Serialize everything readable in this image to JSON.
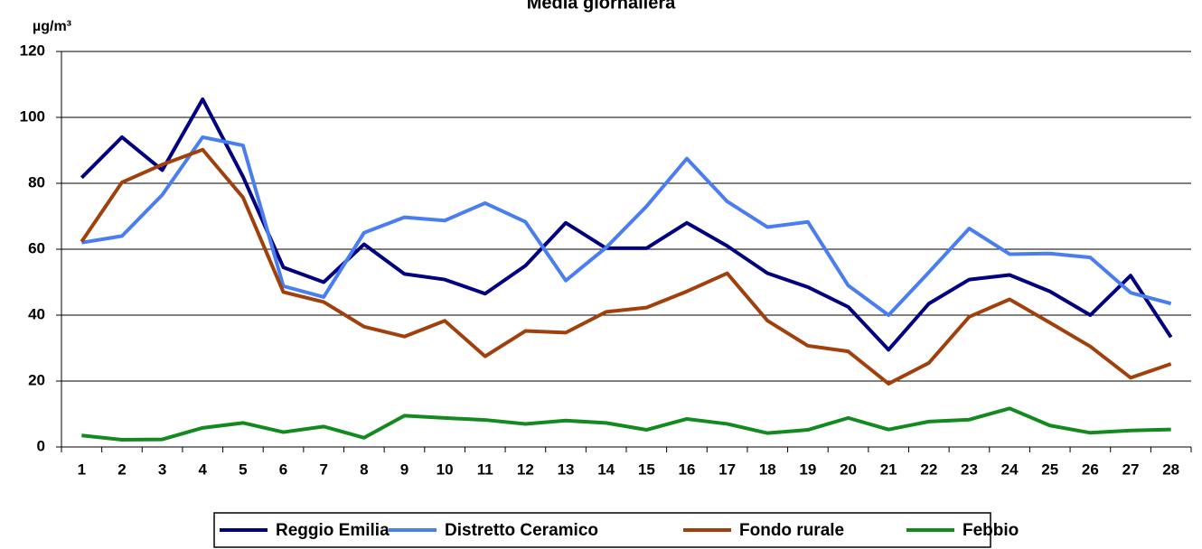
{
  "chart_data": {
    "type": "line",
    "title": "Media giornaliera",
    "y_label": "µg/m³",
    "categories": [
      "1",
      "2",
      "3",
      "4",
      "5",
      "6",
      "7",
      "8",
      "9",
      "10",
      "11",
      "12",
      "13",
      "14",
      "15",
      "16",
      "17",
      "18",
      "19",
      "20",
      "21",
      "22",
      "23",
      "24",
      "25",
      "26",
      "27",
      "28"
    ],
    "series": [
      {
        "name": "Reggio Emilia",
        "color": "#000080",
        "values": [
          81.7,
          94,
          84,
          105.5,
          82,
          54.5,
          50,
          61.5,
          52.5,
          50.8,
          46.5,
          55,
          68,
          60.3,
          60.3,
          68,
          61,
          52.7,
          48.5,
          42.5,
          29.5,
          43.5,
          50.8,
          52.2,
          47.2,
          40,
          52,
          33.3
        ]
      },
      {
        "name": "Distretto Ceramico",
        "color": "#4a7ef0",
        "values": [
          62,
          64,
          76.5,
          94,
          91.5,
          48.8,
          45.5,
          65,
          69.7,
          68.7,
          74,
          68.3,
          50.5,
          60.5,
          73,
          87.5,
          74.5,
          66.7,
          68.3,
          49,
          40,
          53,
          66.3,
          58.5,
          58.7,
          57.5,
          46.8,
          43.5
        ]
      },
      {
        "name": "Fondo rurale",
        "color": "#a0410d",
        "values": [
          62.3,
          80.3,
          85.7,
          90.2,
          75.7,
          47,
          44,
          36.5,
          33.5,
          38.3,
          27.5,
          35.2,
          34.7,
          41,
          42.3,
          47.2,
          52.7,
          38.3,
          30.7,
          29,
          19.2,
          25.5,
          39.5,
          44.8,
          37.7,
          30.5,
          21,
          25.2
        ]
      },
      {
        "name": "Febbio",
        "color": "#138a1f",
        "values": [
          3.5,
          2.2,
          2.3,
          5.8,
          7.3,
          4.5,
          6.2,
          2.8,
          9.5,
          8.8,
          8.2,
          7,
          8,
          7.3,
          5.2,
          8.5,
          7,
          4.2,
          5.2,
          8.8,
          5.3,
          7.7,
          8.3,
          11.7,
          6.5,
          4.3,
          5,
          5.3
        ]
      }
    ],
    "ylim": [
      0,
      120
    ],
    "yticks": [
      0,
      20,
      40,
      60,
      80,
      100,
      120
    ],
    "grid": true,
    "legend": "bottom"
  }
}
